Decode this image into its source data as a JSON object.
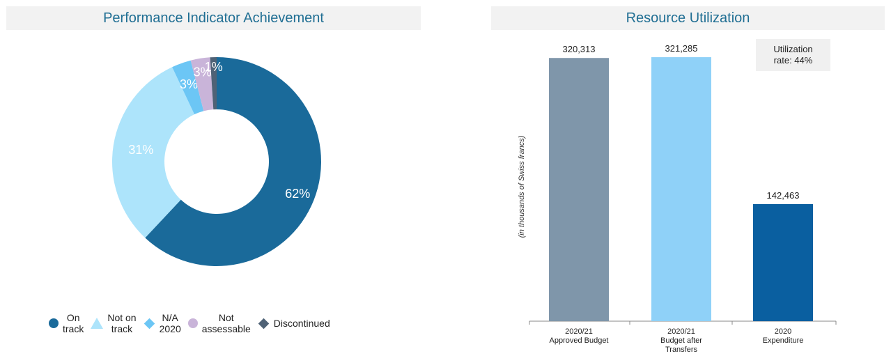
{
  "chart_data": [
    {
      "type": "pie",
      "variant": "donut",
      "title": "Performance Indicator Achievement",
      "categories": [
        "On track",
        "Not on track",
        "N/A 2020",
        "Not assessable",
        "Discontinued"
      ],
      "values": [
        62,
        31,
        3,
        3,
        1
      ],
      "value_labels": [
        "62%",
        "31%",
        "3%",
        "3%",
        "1%"
      ],
      "colors": [
        "#1a6a9a",
        "#ade4fb",
        "#6cc6f5",
        "#c9b4d9",
        "#4f6276"
      ],
      "legend_labels": [
        [
          "On",
          "track"
        ],
        [
          "Not on",
          "track"
        ],
        [
          "N/A",
          "2020"
        ],
        [
          "Not",
          "assessable"
        ],
        [
          "Discontinued"
        ]
      ],
      "legend_markers": [
        "circle",
        "triangle",
        "diamond",
        "circle",
        "diamond"
      ],
      "legend_position": "bottom"
    },
    {
      "type": "bar",
      "title": "Resource Utilization",
      "categories": [
        [
          "2020/21",
          "Approved Budget"
        ],
        [
          "2020/21",
          "Budget after",
          "Transfers"
        ],
        [
          "2020",
          "Expenditure"
        ]
      ],
      "values": [
        320313,
        321285,
        142463
      ],
      "value_labels": [
        "320,313",
        "321,285",
        "142,463"
      ],
      "colors": [
        "#7f96aa",
        "#8fd1f8",
        "#0a5fa0"
      ],
      "ylabel": "(in thousands of Swiss francs)",
      "ylim": [
        0,
        340000
      ],
      "grid": false,
      "annotation": [
        "Utilization",
        "rate: 44%"
      ]
    }
  ]
}
